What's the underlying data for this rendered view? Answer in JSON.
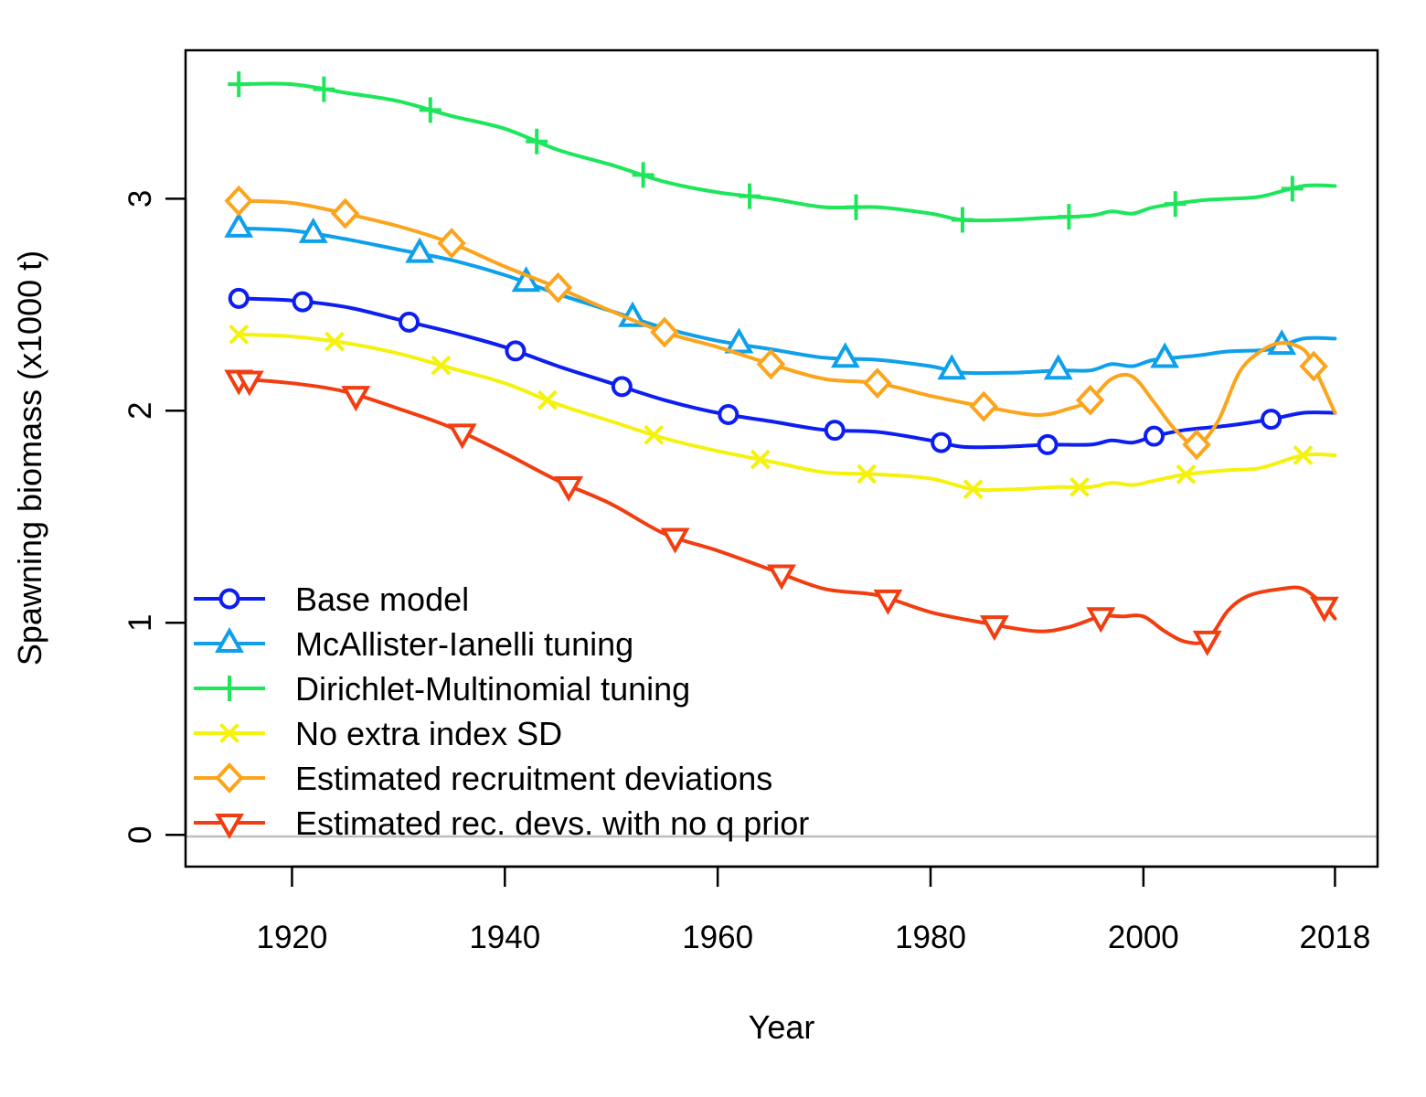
{
  "chart_data": {
    "type": "line",
    "title": "",
    "xlabel": "Year",
    "ylabel": "Spawning biomass (x1000 t)",
    "xlim": [
      1910,
      2022
    ],
    "ylim": [
      -0.15,
      3.7
    ],
    "x_ticks": [
      1920,
      1940,
      1960,
      1980,
      2000,
      2018
    ],
    "y_ticks": [
      0,
      1,
      2,
      3
    ],
    "grid": false,
    "zero_line": true,
    "legend_position": "bottom-left",
    "series": [
      {
        "name": "Base model",
        "color": "#0c1ef0",
        "marker": "circle",
        "points": [
          [
            1915,
            2.53
          ],
          [
            1920,
            2.52
          ],
          [
            1925,
            2.49
          ],
          [
            1930,
            2.43
          ],
          [
            1935,
            2.37
          ],
          [
            1940,
            2.3
          ],
          [
            1945,
            2.21
          ],
          [
            1950,
            2.13
          ],
          [
            1955,
            2.05
          ],
          [
            1960,
            1.99
          ],
          [
            1965,
            1.95
          ],
          [
            1970,
            1.91
          ],
          [
            1975,
            1.9
          ],
          [
            1980,
            1.86
          ],
          [
            1983,
            1.83
          ],
          [
            1987,
            1.83
          ],
          [
            1991,
            1.84
          ],
          [
            1995,
            1.84
          ],
          [
            1997,
            1.86
          ],
          [
            1999,
            1.85
          ],
          [
            2001,
            1.88
          ],
          [
            2004,
            1.91
          ],
          [
            2008,
            1.93
          ],
          [
            2012,
            1.96
          ],
          [
            2015,
            1.99
          ],
          [
            2018,
            1.99
          ]
        ],
        "marker_years": [
          1915,
          1921,
          1931,
          1941,
          1951,
          1961,
          1971,
          1981,
          1991,
          2001,
          2012
        ]
      },
      {
        "name": "McAllister-Ianelli tuning",
        "color": "#0ea0ea",
        "marker": "triangle",
        "points": [
          [
            1915,
            2.86
          ],
          [
            1920,
            2.85
          ],
          [
            1925,
            2.81
          ],
          [
            1930,
            2.76
          ],
          [
            1935,
            2.71
          ],
          [
            1940,
            2.64
          ],
          [
            1945,
            2.55
          ],
          [
            1950,
            2.47
          ],
          [
            1955,
            2.39
          ],
          [
            1960,
            2.33
          ],
          [
            1965,
            2.29
          ],
          [
            1970,
            2.25
          ],
          [
            1975,
            2.24
          ],
          [
            1980,
            2.21
          ],
          [
            1983,
            2.18
          ],
          [
            1988,
            2.18
          ],
          [
            1992,
            2.19
          ],
          [
            1995,
            2.19
          ],
          [
            1997,
            2.22
          ],
          [
            1999,
            2.21
          ],
          [
            2001,
            2.24
          ],
          [
            2005,
            2.26
          ],
          [
            2008,
            2.28
          ],
          [
            2012,
            2.29
          ],
          [
            2015,
            2.34
          ],
          [
            2018,
            2.34
          ]
        ],
        "marker_years": [
          1915,
          1922,
          1932,
          1942,
          1952,
          1962,
          1972,
          1982,
          1992,
          2002,
          2013
        ]
      },
      {
        "name": "Dirichlet-Multinomial tuning",
        "color": "#1de65a",
        "marker": "plus",
        "points": [
          [
            1915,
            3.54
          ],
          [
            1920,
            3.54
          ],
          [
            1925,
            3.5
          ],
          [
            1930,
            3.46
          ],
          [
            1935,
            3.39
          ],
          [
            1940,
            3.33
          ],
          [
            1945,
            3.23
          ],
          [
            1950,
            3.16
          ],
          [
            1955,
            3.08
          ],
          [
            1960,
            3.03
          ],
          [
            1965,
            3.0
          ],
          [
            1970,
            2.96
          ],
          [
            1975,
            2.96
          ],
          [
            1980,
            2.93
          ],
          [
            1983,
            2.9
          ],
          [
            1987,
            2.9
          ],
          [
            1991,
            2.91
          ],
          [
            1995,
            2.92
          ],
          [
            1997,
            2.94
          ],
          [
            1999,
            2.93
          ],
          [
            2001,
            2.96
          ],
          [
            2005,
            2.99
          ],
          [
            2008,
            3.0
          ],
          [
            2011,
            3.01
          ],
          [
            2015,
            3.06
          ],
          [
            2018,
            3.06
          ]
        ],
        "marker_years": [
          1915,
          1923,
          1933,
          1943,
          1953,
          1963,
          1973,
          1983,
          1993,
          2003,
          2014
        ]
      },
      {
        "name": "No extra index SD",
        "color": "#f4f20e",
        "marker": "x",
        "points": [
          [
            1915,
            2.36
          ],
          [
            1920,
            2.35
          ],
          [
            1925,
            2.32
          ],
          [
            1930,
            2.27
          ],
          [
            1935,
            2.2
          ],
          [
            1940,
            2.13
          ],
          [
            1945,
            2.03
          ],
          [
            1950,
            1.95
          ],
          [
            1955,
            1.87
          ],
          [
            1960,
            1.81
          ],
          [
            1965,
            1.76
          ],
          [
            1970,
            1.71
          ],
          [
            1975,
            1.7
          ],
          [
            1980,
            1.68
          ],
          [
            1984,
            1.63
          ],
          [
            1988,
            1.63
          ],
          [
            1992,
            1.64
          ],
          [
            1995,
            1.64
          ],
          [
            1997,
            1.66
          ],
          [
            1999,
            1.65
          ],
          [
            2001,
            1.67
          ],
          [
            2004,
            1.7
          ],
          [
            2008,
            1.72
          ],
          [
            2011,
            1.73
          ],
          [
            2015,
            1.79
          ],
          [
            2018,
            1.79
          ]
        ],
        "marker_years": [
          1915,
          1924,
          1934,
          1944,
          1954,
          1964,
          1974,
          1984,
          1994,
          2004,
          2015
        ]
      },
      {
        "name": "Estimated recruitment deviations",
        "color": "#fba41c",
        "marker": "diamond",
        "points": [
          [
            1915,
            2.99
          ],
          [
            1920,
            2.98
          ],
          [
            1925,
            2.93
          ],
          [
            1930,
            2.87
          ],
          [
            1935,
            2.79
          ],
          [
            1940,
            2.68
          ],
          [
            1945,
            2.58
          ],
          [
            1950,
            2.47
          ],
          [
            1955,
            2.37
          ],
          [
            1960,
            2.3
          ],
          [
            1965,
            2.22
          ],
          [
            1970,
            2.15
          ],
          [
            1975,
            2.13
          ],
          [
            1980,
            2.07
          ],
          [
            1985,
            2.02
          ],
          [
            1990,
            1.98
          ],
          [
            1993,
            2.01
          ],
          [
            1995,
            2.05
          ],
          [
            1997,
            2.15
          ],
          [
            1999,
            2.16
          ],
          [
            2001,
            2.04
          ],
          [
            2003,
            1.91
          ],
          [
            2005,
            1.84
          ],
          [
            2007,
            1.95
          ],
          [
            2009,
            2.18
          ],
          [
            2011,
            2.28
          ],
          [
            2013,
            2.32
          ],
          [
            2015,
            2.29
          ],
          [
            2016,
            2.21
          ],
          [
            2018,
            1.99
          ]
        ],
        "marker_years": [
          1915,
          1925,
          1935,
          1945,
          1955,
          1965,
          1975,
          1985,
          1995,
          2005,
          2016
        ]
      },
      {
        "name": "Estimated rec. devs. with no q prior",
        "color": "#f23d10",
        "marker": "triangle-down",
        "points": [
          [
            1915,
            2.15
          ],
          [
            1920,
            2.13
          ],
          [
            1925,
            2.09
          ],
          [
            1930,
            2.01
          ],
          [
            1935,
            1.92
          ],
          [
            1940,
            1.8
          ],
          [
            1945,
            1.67
          ],
          [
            1950,
            1.56
          ],
          [
            1955,
            1.42
          ],
          [
            1960,
            1.34
          ],
          [
            1965,
            1.25
          ],
          [
            1970,
            1.16
          ],
          [
            1975,
            1.13
          ],
          [
            1980,
            1.05
          ],
          [
            1985,
            1.0
          ],
          [
            1990,
            0.96
          ],
          [
            1993,
            0.98
          ],
          [
            1996,
            1.03
          ],
          [
            1998,
            1.03
          ],
          [
            2000,
            1.03
          ],
          [
            2002,
            0.96
          ],
          [
            2004,
            0.91
          ],
          [
            2006,
            0.92
          ],
          [
            2008,
            1.06
          ],
          [
            2010,
            1.13
          ],
          [
            2013,
            1.16
          ],
          [
            2015,
            1.16
          ],
          [
            2017,
            1.08
          ],
          [
            2018,
            1.02
          ]
        ],
        "marker_years": [
          1915,
          1916,
          1926,
          1936,
          1946,
          1956,
          1966,
          1976,
          1986,
          1996,
          2006,
          2017
        ]
      }
    ]
  }
}
